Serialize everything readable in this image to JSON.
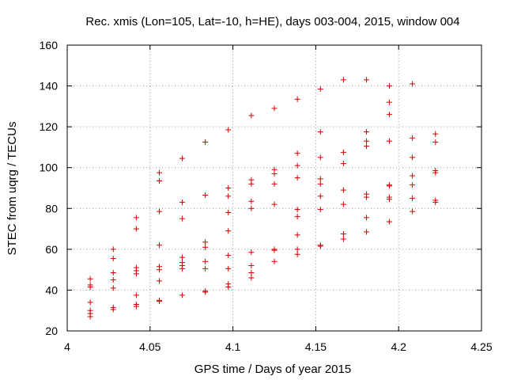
{
  "chart_data": {
    "type": "scatter",
    "title": "Rec. xmis (Lon=105, Lat=-10, h=HE), days 003-004, 2015, window 004",
    "xlabel": "GPS time / Days of year 2015",
    "ylabel": "STEC from uqrg / TECUs",
    "xlim": [
      4,
      4.25
    ],
    "ylim": [
      20,
      160
    ],
    "x_ticks": [
      4,
      4.05,
      4.1,
      4.15,
      4.2,
      4.25
    ],
    "x_tick_labels": [
      "4",
      "4.05",
      "4.1",
      "4.15",
      "4.2",
      "4.25"
    ],
    "y_ticks": [
      20,
      40,
      60,
      80,
      100,
      120,
      140,
      160
    ],
    "y_tick_labels": [
      "20",
      "40",
      "60",
      "80",
      "100",
      "120",
      "140",
      "160"
    ],
    "grid": true,
    "marker": "+",
    "color": "#d40000",
    "series": [
      {
        "name": "STEC",
        "points": [
          [
            4.0139,
            45.5
          ],
          [
            4.0139,
            42.5
          ],
          [
            4.0139,
            41.5
          ],
          [
            4.0139,
            34
          ],
          [
            4.0139,
            30
          ],
          [
            4.0139,
            28.5
          ],
          [
            4.0139,
            27
          ],
          [
            4.0278,
            60
          ],
          [
            4.0278,
            55.5
          ],
          [
            4.0278,
            48.5
          ],
          [
            4.0278,
            45
          ],
          [
            4.0278,
            41
          ],
          [
            4.0278,
            31.5
          ],
          [
            4.0278,
            30.5
          ],
          [
            4.0417,
            75.5
          ],
          [
            4.0417,
            70
          ],
          [
            4.0417,
            51
          ],
          [
            4.0417,
            49.5
          ],
          [
            4.0417,
            48
          ],
          [
            4.0417,
            37.5
          ],
          [
            4.0417,
            33
          ],
          [
            4.0417,
            32
          ],
          [
            4.0556,
            97.5
          ],
          [
            4.0556,
            93.5
          ],
          [
            4.0556,
            78.5
          ],
          [
            4.0556,
            62
          ],
          [
            4.0556,
            51.5
          ],
          [
            4.0556,
            50
          ],
          [
            4.0556,
            44.5
          ],
          [
            4.0556,
            35
          ],
          [
            4.0556,
            34.5
          ],
          [
            4.0694,
            104.5
          ],
          [
            4.0694,
            83
          ],
          [
            4.0694,
            75
          ],
          [
            4.0694,
            56
          ],
          [
            4.0694,
            53.5
          ],
          [
            4.0694,
            52
          ],
          [
            4.0694,
            50.5
          ],
          [
            4.0694,
            37.5
          ],
          [
            4.0833,
            112.5
          ],
          [
            4.0833,
            86.5
          ],
          [
            4.0833,
            63.5
          ],
          [
            4.0833,
            61
          ],
          [
            4.0833,
            54
          ],
          [
            4.0833,
            50.5
          ],
          [
            4.0833,
            39.5
          ],
          [
            4.0833,
            39
          ],
          [
            4.0972,
            118.5
          ],
          [
            4.0972,
            90
          ],
          [
            4.0972,
            86
          ],
          [
            4.0972,
            78
          ],
          [
            4.0972,
            69
          ],
          [
            4.0972,
            57
          ],
          [
            4.0972,
            50.5
          ],
          [
            4.0972,
            43
          ],
          [
            4.0972,
            41.5
          ],
          [
            4.1111,
            125.5
          ],
          [
            4.1111,
            94
          ],
          [
            4.1111,
            92
          ],
          [
            4.1111,
            83.5
          ],
          [
            4.1111,
            80
          ],
          [
            4.1111,
            58.5
          ],
          [
            4.1111,
            52
          ],
          [
            4.1111,
            48.5
          ],
          [
            4.1111,
            46
          ],
          [
            4.125,
            129
          ],
          [
            4.125,
            99
          ],
          [
            4.125,
            97
          ],
          [
            4.125,
            92
          ],
          [
            4.125,
            82
          ],
          [
            4.125,
            60
          ],
          [
            4.125,
            59.5
          ],
          [
            4.125,
            54
          ],
          [
            4.1389,
            133.5
          ],
          [
            4.1389,
            107
          ],
          [
            4.1389,
            101
          ],
          [
            4.1389,
            95
          ],
          [
            4.1389,
            79.5
          ],
          [
            4.1389,
            76
          ],
          [
            4.1389,
            67
          ],
          [
            4.1389,
            60
          ],
          [
            4.1389,
            57.5
          ],
          [
            4.1528,
            138.5
          ],
          [
            4.1528,
            117.5
          ],
          [
            4.1528,
            105
          ],
          [
            4.1528,
            94.5
          ],
          [
            4.1528,
            92
          ],
          [
            4.1528,
            86
          ],
          [
            4.1528,
            79.5
          ],
          [
            4.1528,
            62
          ],
          [
            4.1528,
            61.5
          ],
          [
            4.1667,
            143
          ],
          [
            4.1667,
            107.5
          ],
          [
            4.1667,
            102
          ],
          [
            4.1667,
            89
          ],
          [
            4.1667,
            82
          ],
          [
            4.1667,
            67.5
          ],
          [
            4.1667,
            65
          ],
          [
            4.1806,
            143
          ],
          [
            4.1806,
            117.5
          ],
          [
            4.1806,
            113
          ],
          [
            4.1806,
            110.5
          ],
          [
            4.1806,
            87
          ],
          [
            4.1806,
            85.5
          ],
          [
            4.1806,
            75.5
          ],
          [
            4.1806,
            68.5
          ],
          [
            4.1944,
            140
          ],
          [
            4.1944,
            132
          ],
          [
            4.1944,
            126
          ],
          [
            4.1944,
            113
          ],
          [
            4.1944,
            91.5
          ],
          [
            4.1944,
            91
          ],
          [
            4.1944,
            85.5
          ],
          [
            4.1944,
            84.5
          ],
          [
            4.1944,
            73.5
          ],
          [
            4.2083,
            141
          ],
          [
            4.2083,
            114.5
          ],
          [
            4.2083,
            105
          ],
          [
            4.2083,
            96
          ],
          [
            4.2083,
            91.5
          ],
          [
            4.2083,
            85
          ],
          [
            4.2083,
            78.5
          ],
          [
            4.2222,
            116.5
          ],
          [
            4.2222,
            112.5
          ],
          [
            4.2222,
            98.5
          ],
          [
            4.2222,
            97.5
          ],
          [
            4.2222,
            84
          ],
          [
            4.2222,
            83
          ]
        ]
      }
    ]
  }
}
